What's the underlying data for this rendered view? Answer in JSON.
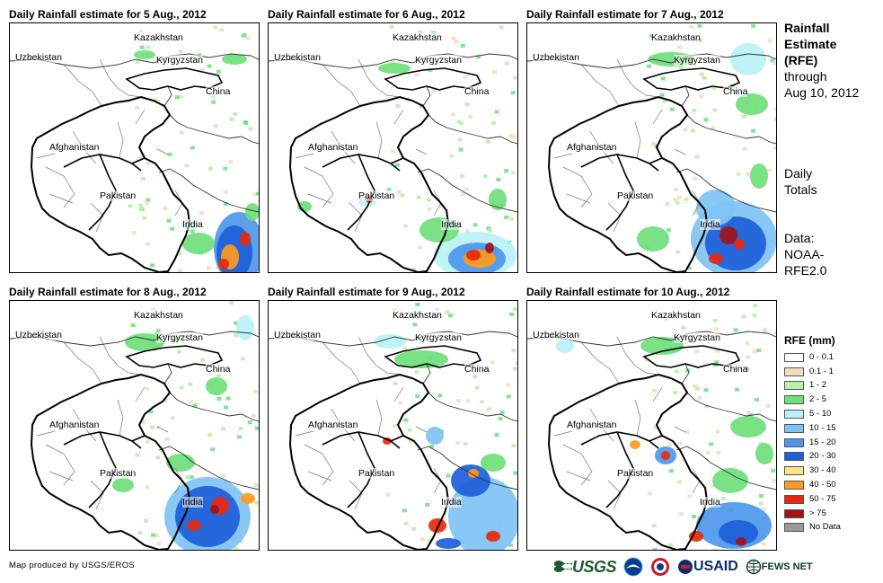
{
  "panels": [
    {
      "title": "Daily Rainfall estimate for 5 Aug., 2012",
      "day": 5
    },
    {
      "title": "Daily Rainfall estimate for 6 Aug., 2012",
      "day": 6
    },
    {
      "title": "Daily Rainfall estimate for 7 Aug., 2012",
      "day": 7
    },
    {
      "title": "Daily Rainfall estimate for 8 Aug., 2012",
      "day": 8
    },
    {
      "title": "Daily Rainfall estimate for 9 Aug., 2012",
      "day": 9
    },
    {
      "title": "Daily Rainfall estimate for 10 Aug., 2012",
      "day": 10
    }
  ],
  "map_labels": {
    "kazakhstan": "Kazakhstan",
    "uzbekistan": "Uzbekistan",
    "kyrgyzstan": "Kyrgyzstan",
    "china": "China",
    "afghanistan": "Afghanistan",
    "pakistan": "Pakistan",
    "india": "India"
  },
  "side": {
    "title_line1": "Rainfall",
    "title_line2": "Estimate",
    "title_line3": "(RFE)",
    "through": "through",
    "date": "Aug 10, 2012",
    "daily_line1": "Daily",
    "daily_line2": "Totals",
    "data_line1": "Data:",
    "data_line2": "NOAA-",
    "data_line3": "RFE2.0"
  },
  "legend": {
    "title": "RFE (mm)",
    "classes": [
      {
        "label": "0 - 0.1",
        "color": "#ffffff"
      },
      {
        "label": "0.1 - 1",
        "color": "#f1ddc0"
      },
      {
        "label": "1 - 2",
        "color": "#b7f0a6"
      },
      {
        "label": "2 - 5",
        "color": "#6ee07a"
      },
      {
        "label": "5 - 10",
        "color": "#b8f2f6"
      },
      {
        "label": "10 - 15",
        "color": "#7fc3f5"
      },
      {
        "label": "15 - 20",
        "color": "#4d97ec"
      },
      {
        "label": "20 - 30",
        "color": "#1d5ed9"
      },
      {
        "label": "30 - 40",
        "color": "#ffe187"
      },
      {
        "label": "40 - 50",
        "color": "#ff9a1c"
      },
      {
        "label": "50 - 75",
        "color": "#e8280e"
      },
      {
        "label": "> 75",
        "color": "#a01418"
      },
      {
        "label": "No Data",
        "color": "#9a9a9a"
      }
    ]
  },
  "footer": {
    "credit": "Map produced by USGS/EROS",
    "usgs": "USGS",
    "usaid": "USAID",
    "fews": "FEWS NET"
  }
}
